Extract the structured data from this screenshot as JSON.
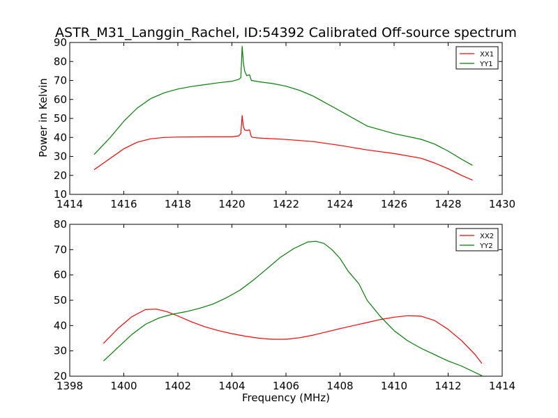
{
  "chart_data": [
    {
      "type": "line",
      "title": "ASTR_M31_Langgin_Rachel, ID:54392 Calibrated Off-source spectrum",
      "xlabel": "",
      "ylabel": "Power in Kelvin",
      "xlim": [
        1414,
        1430
      ],
      "ylim": [
        10,
        90
      ],
      "xticks": [
        1414,
        1416,
        1418,
        1420,
        1422,
        1424,
        1426,
        1428,
        1430
      ],
      "yticks": [
        10,
        20,
        30,
        40,
        50,
        60,
        70,
        80,
        90
      ],
      "legend_position": "top-right",
      "series": [
        {
          "name": "XX1",
          "color": "#ff0000",
          "x": [
            1414.9,
            1415.5,
            1416.0,
            1416.5,
            1417.0,
            1417.5,
            1418.0,
            1419.0,
            1420.0,
            1420.25,
            1420.33,
            1420.38,
            1420.42,
            1420.47,
            1420.55,
            1420.65,
            1420.72,
            1420.8,
            1421.0,
            1422.0,
            1423.0,
            1424.0,
            1425.0,
            1426.0,
            1427.0,
            1427.5,
            1428.0,
            1428.5,
            1428.9
          ],
          "y": [
            23.0,
            29.0,
            34.0,
            37.5,
            39.3,
            40.0,
            40.2,
            40.3,
            40.3,
            40.8,
            42.0,
            51.5,
            46.0,
            44.0,
            43.6,
            44.0,
            40.3,
            40.0,
            39.7,
            38.9,
            37.8,
            35.8,
            33.4,
            31.5,
            29.0,
            26.5,
            23.5,
            20.0,
            17.5
          ]
        },
        {
          "name": "YY1",
          "color": "#008000",
          "x": [
            1414.9,
            1415.5,
            1416.0,
            1416.5,
            1417.0,
            1417.5,
            1418.0,
            1418.5,
            1419.0,
            1419.5,
            1420.0,
            1420.25,
            1420.33,
            1420.38,
            1420.42,
            1420.47,
            1420.55,
            1420.65,
            1420.72,
            1420.8,
            1421.0,
            1421.5,
            1422.0,
            1422.5,
            1423.0,
            1424.0,
            1425.0,
            1426.0,
            1427.0,
            1427.5,
            1428.0,
            1428.5,
            1428.9
          ],
          "y": [
            31.0,
            40.0,
            48.5,
            55.5,
            60.5,
            63.5,
            65.5,
            66.8,
            67.8,
            68.8,
            69.6,
            70.5,
            71.5,
            88.0,
            80.0,
            75.0,
            72.5,
            73.0,
            70.0,
            69.8,
            69.3,
            68.4,
            67.0,
            64.8,
            61.8,
            54.0,
            46.0,
            42.0,
            39.0,
            36.5,
            32.8,
            28.5,
            25.3
          ]
        }
      ]
    },
    {
      "type": "line",
      "title": "",
      "xlabel": "Frequency (MHz)",
      "ylabel": "",
      "xlim": [
        1398,
        1414
      ],
      "ylim": [
        20,
        80
      ],
      "xticks": [
        1398,
        1400,
        1402,
        1404,
        1406,
        1408,
        1410,
        1412,
        1414
      ],
      "yticks": [
        20,
        30,
        40,
        50,
        60,
        70,
        80
      ],
      "legend_position": "top-right",
      "series": [
        {
          "name": "XX2",
          "color": "#ff0000",
          "x": [
            1399.25,
            1399.8,
            1400.3,
            1400.8,
            1401.2,
            1401.6,
            1402.0,
            1402.5,
            1403.0,
            1403.5,
            1404.0,
            1404.5,
            1405.0,
            1405.5,
            1406.0,
            1406.5,
            1407.0,
            1407.5,
            1408.0,
            1408.5,
            1409.0,
            1409.5,
            1410.0,
            1410.5,
            1411.0,
            1411.5,
            1412.0,
            1412.5,
            1413.0,
            1413.25
          ],
          "y": [
            33.0,
            39.0,
            43.5,
            46.3,
            46.5,
            45.5,
            43.8,
            41.5,
            39.5,
            38.0,
            36.8,
            35.8,
            35.0,
            34.6,
            34.6,
            35.2,
            36.2,
            37.5,
            38.8,
            40.0,
            41.2,
            42.4,
            43.3,
            43.9,
            43.7,
            42.0,
            38.5,
            34.0,
            28.5,
            25.0
          ]
        },
        {
          "name": "YY2",
          "color": "#008000",
          "x": [
            1399.25,
            1399.8,
            1400.3,
            1400.8,
            1401.3,
            1401.8,
            1402.3,
            1402.8,
            1403.3,
            1403.8,
            1404.3,
            1404.8,
            1405.3,
            1405.8,
            1406.3,
            1406.8,
            1407.1,
            1407.4,
            1407.7,
            1408.0,
            1408.3,
            1408.7,
            1409.0,
            1409.5,
            1410.0,
            1410.5,
            1411.0,
            1411.5,
            1412.0,
            1412.5,
            1413.25
          ],
          "y": [
            26.0,
            31.5,
            36.5,
            40.5,
            43.0,
            44.5,
            45.5,
            46.8,
            48.5,
            51.0,
            54.0,
            58.0,
            62.5,
            67.0,
            70.5,
            73.0,
            73.3,
            72.5,
            70.0,
            66.5,
            61.5,
            56.5,
            50.0,
            43.5,
            38.0,
            34.0,
            31.0,
            28.5,
            26.0,
            24.0,
            20.2
          ]
        }
      ]
    }
  ]
}
